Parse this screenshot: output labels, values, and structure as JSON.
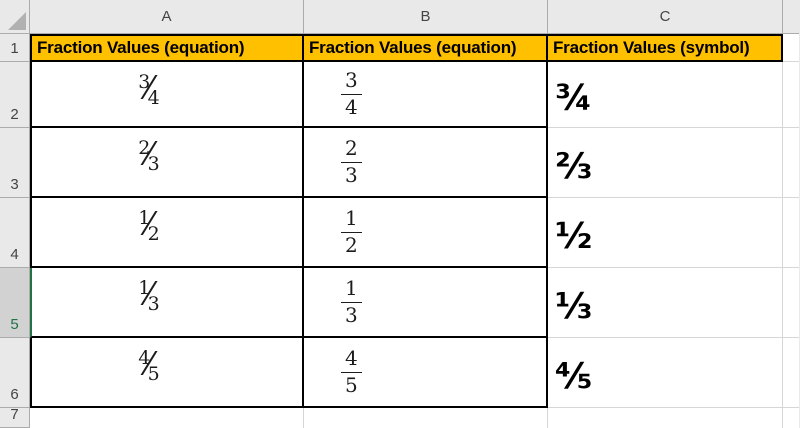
{
  "app": {
    "type": "spreadsheet-grid"
  },
  "column_headers": [
    "A",
    "B",
    "C"
  ],
  "row_headers": [
    "1",
    "2",
    "3",
    "4",
    "5",
    "6",
    "7"
  ],
  "header_row": {
    "a": "Fraction Values (equation)",
    "b": "Fraction Values (equation)",
    "c": "Fraction Values (symbol)"
  },
  "glyphs": {
    "fraction_slash": "⁄"
  },
  "rows": [
    {
      "num": "3",
      "den": "4",
      "sym": "¾"
    },
    {
      "num": "2",
      "den": "3",
      "sym": "⅔"
    },
    {
      "num": "1",
      "den": "2",
      "sym": "½"
    },
    {
      "num": "1",
      "den": "3",
      "sym": "⅓"
    },
    {
      "num": "4",
      "den": "5",
      "sym": "⅘"
    }
  ],
  "selection": {
    "active_cell": "A5",
    "active_row": "5"
  },
  "colors": {
    "header_fill": "#FFC000",
    "header_text": "#000000",
    "table_border": "#000000",
    "gridline": "#D6D6D6",
    "selection_green": "#217346",
    "panel_gray": "#E9E9E9",
    "selected_header_gray": "#D2D2D2"
  }
}
